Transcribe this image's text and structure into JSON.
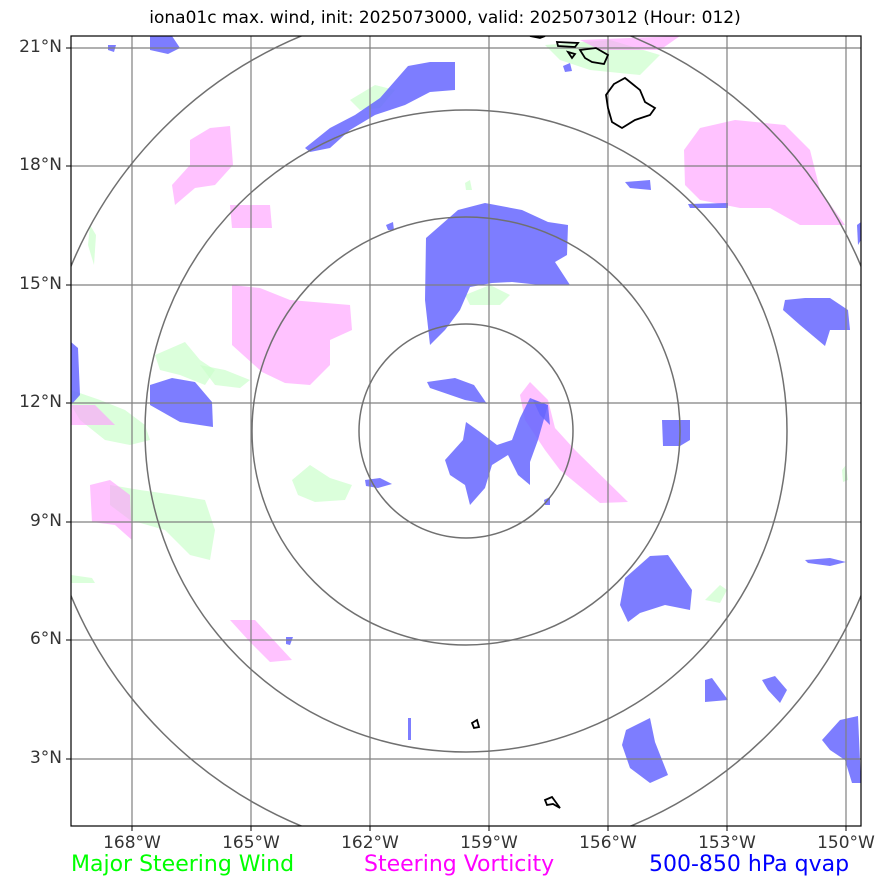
{
  "title": "iona01c max. wind, init: 2025073000, valid: 2025073012 (Hour: 012)",
  "axes": {
    "lat_labels": [
      "21°N",
      "18°N",
      "15°N",
      "12°N",
      "9°N",
      "6°N",
      "3°N"
    ],
    "lon_labels": [
      "168°W",
      "165°W",
      "162°W",
      "159°W",
      "156°W",
      "153°W",
      "150°W"
    ]
  },
  "legend": {
    "wind": "Major Steering Wind",
    "vorticity": "Steering Vorticity",
    "qvap": "500-850 hPa qvap"
  },
  "colors": {
    "wind": "#00ff00",
    "vorticity": "#ff00ff",
    "qvap": "#0000ff",
    "grid": "#808080",
    "coast": "#000000"
  },
  "range_rings": 4,
  "storm_center": {
    "lon": -159.5,
    "lat": 11.3
  }
}
